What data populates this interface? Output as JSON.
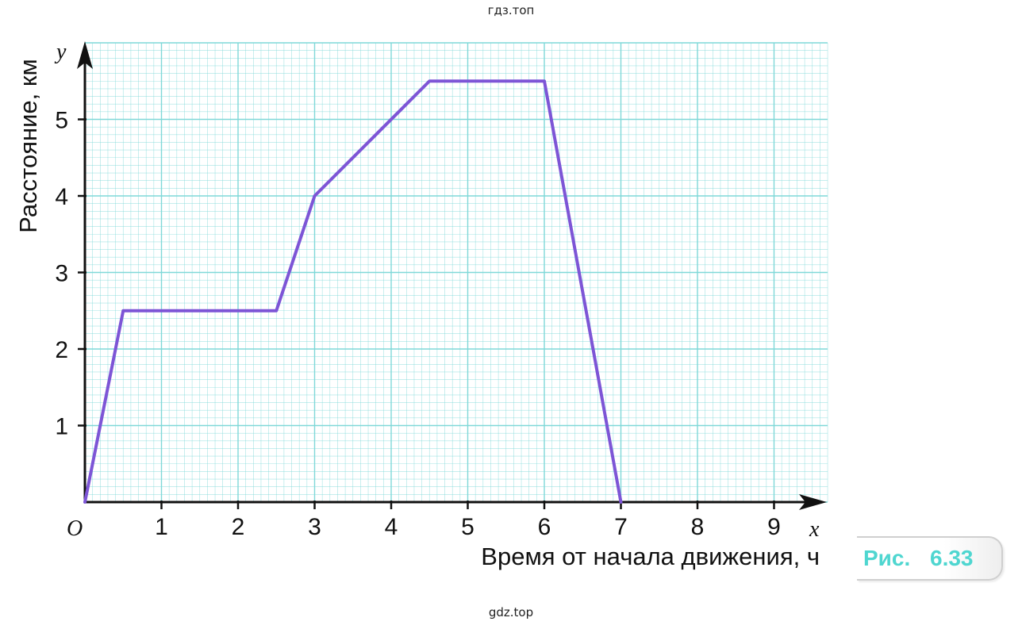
{
  "watermark_top": "гдз.топ",
  "watermark_bottom": "gdz.top",
  "figure": {
    "prefix": "Рис.",
    "number": "6.33",
    "color": "#4fd6d0"
  },
  "chart_data": {
    "type": "line",
    "title": "",
    "xlabel": "Время от начала движения, ч",
    "ylabel": "Расстояние,  км",
    "x_axis_letter": "x",
    "y_axis_letter": "y",
    "origin_label": "O",
    "xlim": [
      0,
      9.7
    ],
    "ylim": [
      0,
      6
    ],
    "xticks": [
      "1",
      "2",
      "3",
      "4",
      "5",
      "6",
      "7",
      "8",
      "9"
    ],
    "yticks": [
      "1",
      "2",
      "3",
      "4",
      "5"
    ],
    "grid": true,
    "grid_color": "#7fd8d8",
    "line_color": "#7d55d6",
    "points": [
      {
        "x": 0,
        "y": 0
      },
      {
        "x": 0.5,
        "y": 2.5
      },
      {
        "x": 2.5,
        "y": 2.5
      },
      {
        "x": 3,
        "y": 4
      },
      {
        "x": 4.5,
        "y": 5.5
      },
      {
        "x": 6,
        "y": 5.5
      },
      {
        "x": 7,
        "y": 0
      }
    ]
  }
}
